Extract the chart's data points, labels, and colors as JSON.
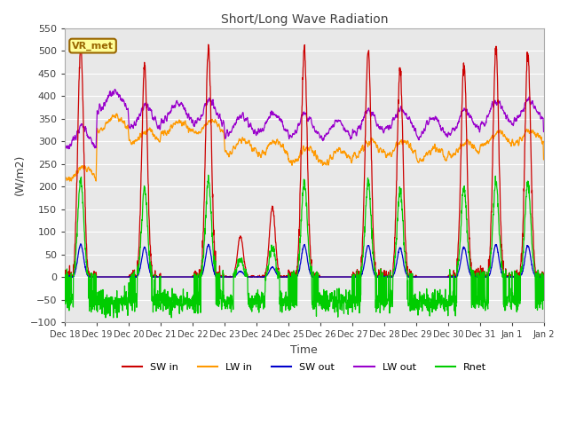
{
  "title": "Short/Long Wave Radiation",
  "xlabel": "Time",
  "ylabel": "(W/m2)",
  "ylim": [
    -100,
    550
  ],
  "yticks": [
    -100,
    -50,
    0,
    50,
    100,
    150,
    200,
    250,
    300,
    350,
    400,
    450,
    500,
    550
  ],
  "x_labels": [
    "Dec 18",
    "Dec 19",
    "Dec 20",
    "Dec 21",
    "Dec 22",
    "Dec 23",
    "Dec 24",
    "Dec 25",
    "Dec 26",
    "Dec 27",
    "Dec 28",
    "Dec 29",
    "Dec 30",
    "Dec 31",
    "Jan 1",
    "Jan 2"
  ],
  "n_days": 15,
  "colors": {
    "SW_in": "#cc0000",
    "LW_in": "#ff9900",
    "SW_out": "#0000cc",
    "LW_out": "#9900cc",
    "Rnet": "#00cc00"
  },
  "legend_labels": [
    "SW in",
    "LW in",
    "SW out",
    "LW out",
    "Rnet"
  ],
  "box_label": "VR_met",
  "box_facecolor": "#ffff99",
  "box_edgecolor": "#996600",
  "background_color": "#e8e8e8",
  "grid_color": "#ffffff",
  "title_color": "#404040",
  "axis_label_color": "#404040",
  "SW_peaks": [
    515,
    5,
    465,
    2,
    505,
    90,
    155,
    505,
    5,
    505,
    460,
    5,
    475,
    505,
    495,
    0
  ],
  "LW_in_level": [
    230,
    340,
    310,
    330,
    330,
    290,
    285,
    270,
    265,
    285,
    285,
    270,
    285,
    305,
    310,
    300
  ],
  "LW_out_level": [
    305,
    390,
    350,
    365,
    360,
    335,
    340,
    330,
    325,
    340,
    345,
    330,
    340,
    360,
    365,
    345
  ]
}
